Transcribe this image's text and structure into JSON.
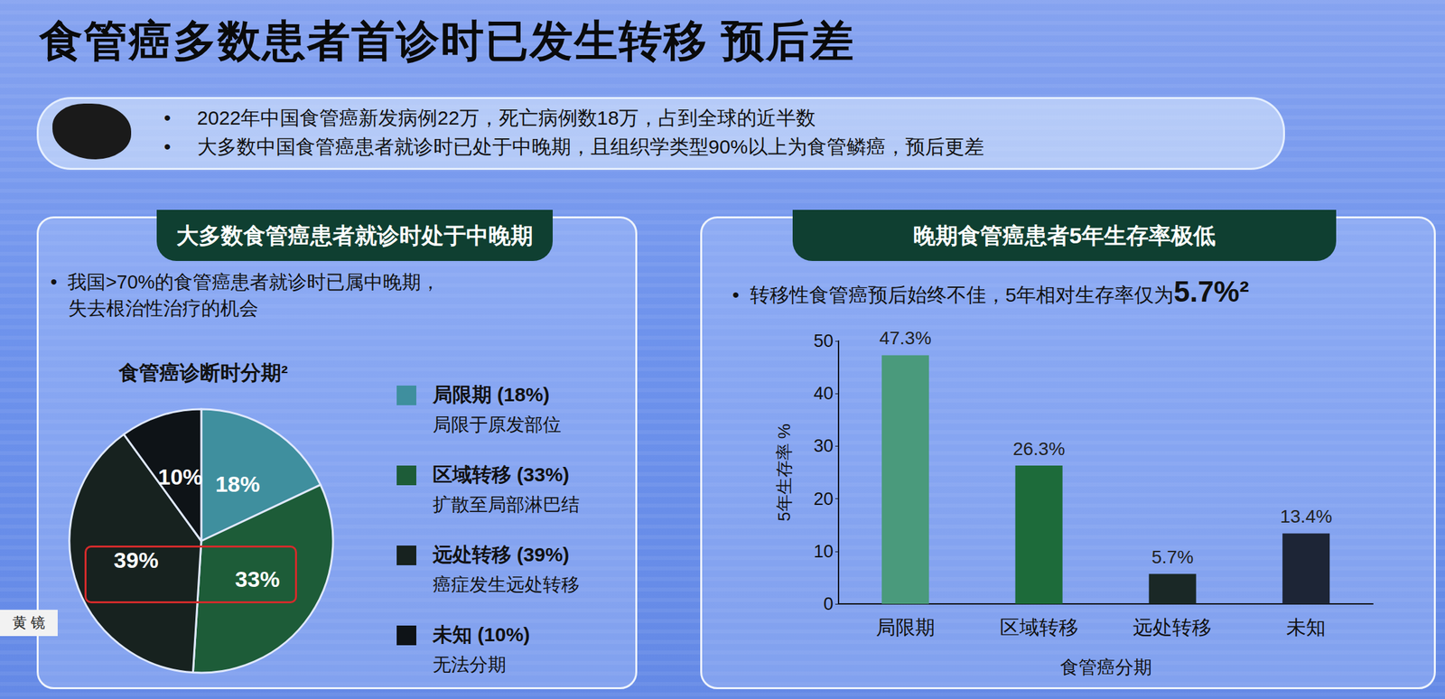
{
  "title": "食管癌多数患者首诊时已发生转移 预后差",
  "bullets": [
    "2022年中国食管癌新发病例22万，死亡病例数18万，占到全球的近半数",
    "大多数中国食管癌患者就诊时已处于中晚期，且组织学类型90%以上为食管鳞癌，预后更差"
  ],
  "nameplate": "黄 镜",
  "chart_data": [
    {
      "type": "pie",
      "panel_title": "大多数食管癌患者就诊时处于中晚期",
      "note_lines": [
        "我国>70%的食管癌患者就诊时已属中晚期，",
        "失去根治性治疗的机会"
      ],
      "title": "食管癌诊断时分期²",
      "categories": [
        "局限期",
        "区域转移",
        "远处转移",
        "未知"
      ],
      "values": [
        18,
        33,
        39,
        10
      ],
      "value_labels": [
        "18%",
        "33%",
        "39%",
        "10%"
      ],
      "legend_labels": [
        "局限期 (18%)",
        "区域转移 (33%)",
        "远处转移 (39%)",
        "未知 (10%)"
      ],
      "descriptions": [
        "局限于原发部位",
        "扩散至局部淋巴结",
        "癌症发生远处转移",
        "无法分期"
      ],
      "colors": [
        "#3f8f9e",
        "#1d5c38",
        "#17221f",
        "#0e1317"
      ],
      "data_labels": true
    },
    {
      "type": "bar",
      "panel_title": "晚期食管癌患者5年生存率极低",
      "note": "转移性食管癌预后始终不佳，5年相对生存率仅为",
      "note_emphasis": "5.7%²",
      "categories": [
        "局限期",
        "区域转移",
        "远处转移",
        "未知"
      ],
      "values": [
        47.3,
        26.3,
        5.7,
        13.4
      ],
      "value_labels": [
        "47.3%",
        "26.3%",
        "5.7%",
        "13.4%"
      ],
      "colors": [
        "#4a9a7c",
        "#1d6b3a",
        "#1a2826",
        "#1d2536"
      ],
      "y_label": "5年生存率 %",
      "x_label": "食管癌分期",
      "ylim": [
        0,
        50
      ],
      "yticks": [
        0,
        10,
        20,
        30,
        40,
        50
      ],
      "grid": false,
      "data_labels": true
    }
  ]
}
